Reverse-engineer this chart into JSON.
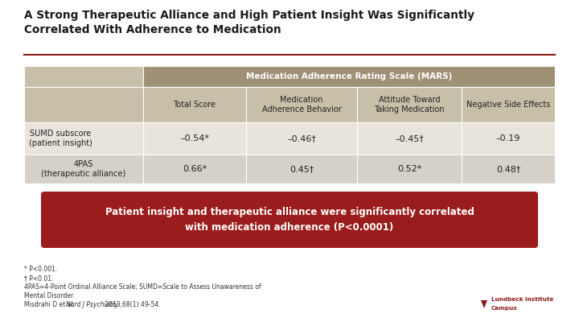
{
  "title_line1": "A Strong Therapeutic Alliance and High Patient Insight Was Significantly",
  "title_line2": "Correlated With Adherence to Medication",
  "background_color": "#ffffff",
  "title_color": "#1a1a1a",
  "divider_color": "#8B1A1A",
  "header1_bg": "#9e9175",
  "header2_bg": "#c8bfa8",
  "row1_bg": "#e8e4dc",
  "row2_bg": "#d5d0c8",
  "col_header": "Medication Adherence Rating Scale (MARS)",
  "col_headers": [
    "Total Score",
    "Medication\nAdherence Behavior",
    "Attitude Toward\nTaking Medication",
    "Negative Side Effects"
  ],
  "row_labels": [
    "SUMD subscore\n(patient insight)",
    "4PAS\n(therapeutic alliance)"
  ],
  "data": [
    [
      "–0.54*",
      "–0.46†",
      "–0.45†",
      "–0.19"
    ],
    [
      "0.66*",
      "0.45†",
      "0.52*",
      "0.48†"
    ]
  ],
  "callout_text_line1": "Patient insight and therapeutic alliance were significantly correlated",
  "callout_text_line2": "with medication adherence (P<0.0001)",
  "callout_bg": "#9B1C1C",
  "callout_text_color": "#ffffff",
  "footnote_lines": [
    "* P<0.001.",
    "† P<0.01.",
    "4PAS=4-Point Ordinal Alliance Scale; SUMD=Scale to Assess Unawareness of",
    "Mental Disorder.",
    "Misdrahi D et al. ",
    "Nord J Psychiatry.",
    " 2013;68(1):49-54."
  ]
}
